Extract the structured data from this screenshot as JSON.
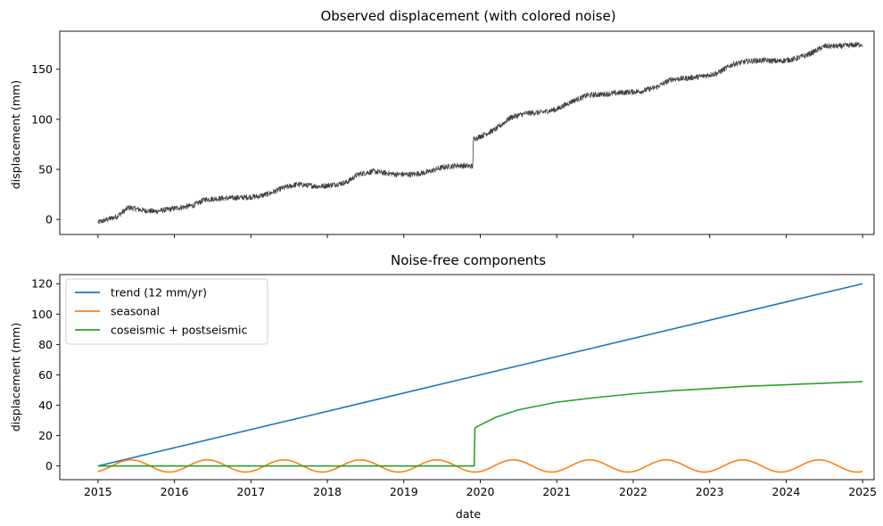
{
  "chart_data": [
    {
      "type": "line",
      "title": "Observed displacement (with colored noise)",
      "xlabel": "",
      "ylabel": "displacement (mm)",
      "x_tick_labels_visible": false,
      "xlim": [
        2014.5,
        2025.15
      ],
      "ylim": [
        -15,
        188
      ],
      "yticks": [
        0,
        50,
        100,
        150
      ],
      "grid": false,
      "legend": "none",
      "series": [
        {
          "color": "#404040",
          "x": [
            2015.0,
            2015.25,
            2015.4,
            2015.6,
            2015.75,
            2016.0,
            2016.25,
            2016.4,
            2016.6,
            2016.9,
            2017.1,
            2017.25,
            2017.4,
            2017.6,
            2017.9,
            2018.1,
            2018.25,
            2018.4,
            2018.6,
            2018.9,
            2019.1,
            2019.3,
            2019.5,
            2019.7,
            2019.9,
            2019.91,
            2020.0,
            2020.2,
            2020.4,
            2020.6,
            2020.8,
            2021.0,
            2021.2,
            2021.4,
            2021.6,
            2021.9,
            2022.1,
            2022.3,
            2022.5,
            2022.7,
            2022.9,
            2023.1,
            2023.3,
            2023.5,
            2023.7,
            2023.9,
            2024.1,
            2024.3,
            2024.5,
            2024.7,
            2025.0
          ],
          "y": [
            -3,
            3,
            12,
            9,
            8,
            11,
            14,
            20,
            21,
            22,
            23,
            26,
            31,
            35,
            33,
            35,
            37,
            45,
            48,
            45,
            45,
            47,
            52,
            54,
            53,
            80,
            83,
            90,
            102,
            106,
            107,
            110,
            118,
            124,
            125,
            127,
            128,
            132,
            140,
            141,
            143,
            146,
            155,
            158,
            159,
            158,
            160,
            165,
            173,
            173,
            175
          ]
        }
      ]
    },
    {
      "type": "line",
      "title": "Noise-free components",
      "xlabel": "date",
      "ylabel": "displacement (mm)",
      "xlim": [
        2014.5,
        2025.15
      ],
      "ylim": [
        -9,
        126
      ],
      "xticks": [
        2015,
        2016,
        2017,
        2018,
        2019,
        2020,
        2021,
        2022,
        2023,
        2024,
        2025
      ],
      "yticks": [
        0,
        20,
        40,
        60,
        80,
        100,
        120
      ],
      "grid": false,
      "legend": "top-left",
      "event_date": 2019.92,
      "series": [
        {
          "name": "trend (12 mm/yr)",
          "color": "#1f77b4",
          "x": [
            2015,
            2025
          ],
          "y": [
            0,
            120
          ]
        },
        {
          "name": "seasonal",
          "color": "#ff7f0e",
          "amplitude_mm": 4,
          "peak_phase_year_fraction": 0.43,
          "x": [
            2015.0,
            2015.18,
            2015.43,
            2015.68,
            2015.93,
            2016.18,
            2016.43,
            2016.68,
            2016.93,
            2017.18,
            2017.43,
            2017.68,
            2017.93,
            2018.18,
            2018.43,
            2018.68,
            2018.93,
            2019.18,
            2019.43,
            2019.68,
            2019.93,
            2020.18,
            2020.43,
            2020.68,
            2020.93,
            2021.18,
            2021.43,
            2021.68,
            2021.93,
            2022.18,
            2022.43,
            2022.68,
            2022.93,
            2023.18,
            2023.43,
            2023.68,
            2023.93,
            2024.18,
            2024.43,
            2024.68,
            2024.93,
            2025.0
          ],
          "y": [
            -2.8,
            0,
            4,
            0,
            -4,
            0,
            4,
            0,
            -4,
            0,
            4,
            0,
            -4,
            0,
            4,
            0,
            -4,
            0,
            4,
            0,
            -4,
            0,
            4,
            0,
            -4,
            0,
            4,
            0,
            -4,
            0,
            4,
            0,
            -4,
            0,
            4,
            0,
            -4,
            0,
            4,
            0,
            -4,
            -3
          ]
        },
        {
          "name": "coseismic + postseismic",
          "color": "#2ca02c",
          "x": [
            2015.0,
            2019.92,
            2019.93,
            2020.0,
            2020.2,
            2020.5,
            2021.0,
            2021.5,
            2022.0,
            2022.5,
            2023.0,
            2023.5,
            2024.0,
            2024.5,
            2025.0
          ],
          "y": [
            0,
            0,
            25,
            27,
            32,
            37,
            42,
            45,
            47.5,
            49.5,
            51,
            52.5,
            53.5,
            54.5,
            55.5
          ]
        }
      ]
    }
  ]
}
